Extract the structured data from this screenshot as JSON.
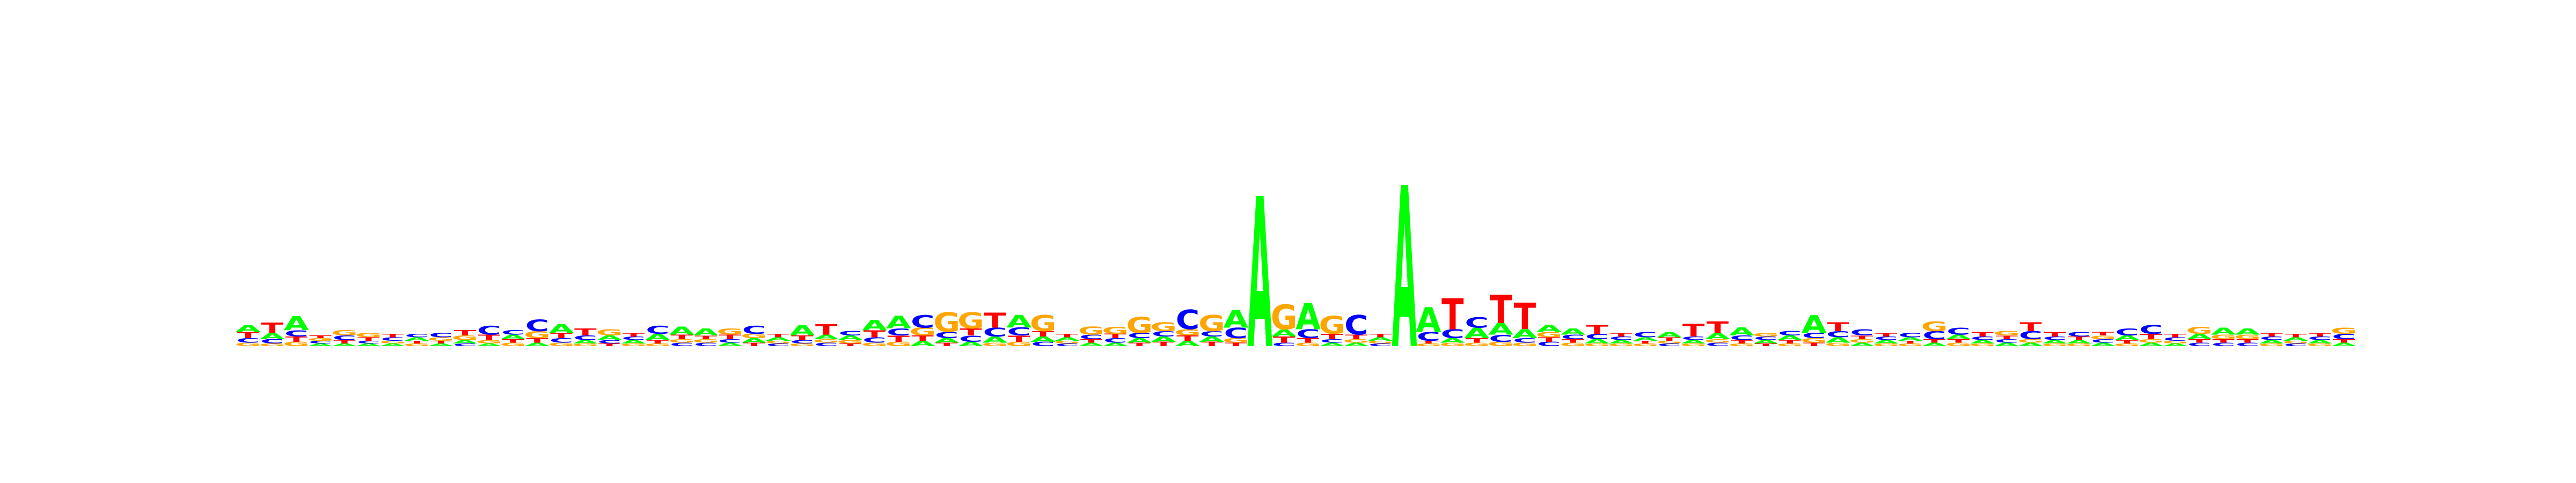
{
  "chart_data": {
    "type": "sequence-logo",
    "title": "",
    "xlabel": "",
    "ylabel": "",
    "axes_visible": false,
    "grid": false,
    "alphabet": [
      "A",
      "C",
      "G",
      "T"
    ],
    "colors": {
      "A": "#00ff00",
      "C": "#0000ff",
      "G": "#ffa500",
      "T": "#ff0000"
    },
    "ylim": [
      0,
      2
    ],
    "positions": [
      {
        "A": 0.08,
        "C": 0.05,
        "G": 0.04,
        "T": 0.07
      },
      {
        "A": 0.07,
        "C": 0.05,
        "G": 0.03,
        "T": 0.12
      },
      {
        "A": 0.16,
        "C": 0.07,
        "G": 0.05,
        "T": 0.06
      },
      {
        "A": 0.03,
        "C": 0.03,
        "G": 0.03,
        "T": 0.03
      },
      {
        "A": 0.03,
        "C": 0.05,
        "G": 0.06,
        "T": 0.04
      },
      {
        "A": 0.03,
        "C": 0.03,
        "G": 0.05,
        "T": 0.04
      },
      {
        "A": 0.03,
        "C": 0.04,
        "G": 0.03,
        "T": 0.04
      },
      {
        "A": 0.04,
        "C": 0.04,
        "G": 0.03,
        "T": 0.03
      },
      {
        "A": 0.03,
        "C": 0.05,
        "G": 0.04,
        "T": 0.03
      },
      {
        "A": 0.04,
        "C": 0.03,
        "G": 0.05,
        "T": 0.06
      },
      {
        "A": 0.03,
        "C": 0.1,
        "G": 0.04,
        "T": 0.06
      },
      {
        "A": 0.05,
        "C": 0.05,
        "G": 0.04,
        "T": 0.04
      },
      {
        "A": 0.04,
        "C": 0.13,
        "G": 0.08,
        "T": 0.05
      },
      {
        "A": 0.1,
        "C": 0.05,
        "G": 0.04,
        "T": 0.06
      },
      {
        "A": 0.04,
        "C": 0.05,
        "G": 0.03,
        "T": 0.08
      },
      {
        "A": 0.05,
        "C": 0.04,
        "G": 0.07,
        "T": 0.03
      },
      {
        "A": 0.04,
        "C": 0.04,
        "G": 0.03,
        "T": 0.04
      },
      {
        "A": 0.07,
        "C": 0.09,
        "G": 0.03,
        "T": 0.04
      },
      {
        "A": 0.09,
        "C": 0.04,
        "G": 0.04,
        "T": 0.05
      },
      {
        "A": 0.08,
        "C": 0.04,
        "G": 0.04,
        "T": 0.04
      },
      {
        "A": 0.04,
        "C": 0.04,
        "G": 0.07,
        "T": 0.05
      },
      {
        "A": 0.05,
        "C": 0.09,
        "G": 0.05,
        "T": 0.04
      },
      {
        "A": 0.04,
        "C": 0.03,
        "G": 0.03,
        "T": 0.04
      },
      {
        "A": 0.12,
        "C": 0.04,
        "G": 0.03,
        "T": 0.05
      },
      {
        "A": 0.05,
        "C": 0.04,
        "G": 0.04,
        "T": 0.12
      },
      {
        "A": 0.05,
        "C": 0.05,
        "G": 0.04,
        "T": 0.03
      },
      {
        "A": 0.12,
        "C": 0.06,
        "G": 0.04,
        "T": 0.08
      },
      {
        "A": 0.14,
        "C": 0.08,
        "G": 0.05,
        "T": 0.07
      },
      {
        "A": 0.06,
        "C": 0.14,
        "G": 0.09,
        "T": 0.06
      },
      {
        "A": 0.05,
        "C": 0.07,
        "G": 0.22,
        "T": 0.04
      },
      {
        "A": 0.05,
        "C": 0.07,
        "G": 0.18,
        "T": 0.08
      },
      {
        "A": 0.07,
        "C": 0.1,
        "G": 0.04,
        "T": 0.17
      },
      {
        "A": 0.14,
        "C": 0.09,
        "G": 0.05,
        "T": 0.07
      },
      {
        "A": 0.06,
        "C": 0.05,
        "G": 0.18,
        "T": 0.06
      },
      {
        "A": 0.04,
        "C": 0.03,
        "G": 0.03,
        "T": 0.04
      },
      {
        "A": 0.04,
        "C": 0.05,
        "G": 0.09,
        "T": 0.04
      },
      {
        "A": 0.04,
        "C": 0.05,
        "G": 0.08,
        "T": 0.05
      },
      {
        "A": 0.05,
        "C": 0.06,
        "G": 0.18,
        "T": 0.04
      },
      {
        "A": 0.06,
        "C": 0.06,
        "G": 0.1,
        "T": 0.05
      },
      {
        "A": 0.06,
        "C": 0.22,
        "G": 0.07,
        "T": 0.06
      },
      {
        "A": 0.06,
        "C": 0.06,
        "G": 0.18,
        "T": 0.05
      },
      {
        "A": 0.2,
        "C": 0.12,
        "G": 0.05,
        "T": 0.04
      },
      {
        "A": 1.7,
        "C": 0.0,
        "G": 0.0,
        "T": 0.0
      },
      {
        "A": 0.08,
        "C": 0.04,
        "G": 0.28,
        "T": 0.07
      },
      {
        "A": 0.3,
        "C": 0.1,
        "G": 0.04,
        "T": 0.05
      },
      {
        "A": 0.04,
        "C": 0.04,
        "G": 0.2,
        "T": 0.06
      },
      {
        "A": 0.04,
        "C": 0.22,
        "G": 0.04,
        "T": 0.05
      },
      {
        "A": 0.04,
        "C": 0.03,
        "G": 0.03,
        "T": 0.04
      },
      {
        "A": 1.82,
        "C": 0.0,
        "G": 0.0,
        "T": 0.0
      },
      {
        "A": 0.28,
        "C": 0.1,
        "G": 0.03,
        "T": 0.03
      },
      {
        "A": 0.05,
        "C": 0.1,
        "G": 0.04,
        "T": 0.35
      },
      {
        "A": 0.12,
        "C": 0.12,
        "G": 0.04,
        "T": 0.05
      },
      {
        "A": 0.13,
        "C": 0.08,
        "G": 0.05,
        "T": 0.32
      },
      {
        "A": 0.1,
        "C": 0.05,
        "G": 0.04,
        "T": 0.3
      },
      {
        "A": 0.08,
        "C": 0.05,
        "G": 0.06,
        "T": 0.05
      },
      {
        "A": 0.07,
        "C": 0.05,
        "G": 0.04,
        "T": 0.04
      },
      {
        "A": 0.05,
        "C": 0.06,
        "G": 0.03,
        "T": 0.1
      },
      {
        "A": 0.04,
        "C": 0.04,
        "G": 0.03,
        "T": 0.04
      },
      {
        "A": 0.04,
        "C": 0.06,
        "G": 0.03,
        "T": 0.03
      },
      {
        "A": 0.06,
        "C": 0.03,
        "G": 0.03,
        "T": 0.04
      },
      {
        "A": 0.04,
        "C": 0.04,
        "G": 0.03,
        "T": 0.14
      },
      {
        "A": 0.07,
        "C": 0.04,
        "G": 0.04,
        "T": 0.13
      },
      {
        "A": 0.09,
        "C": 0.05,
        "G": 0.03,
        "T": 0.04
      },
      {
        "A": 0.04,
        "C": 0.04,
        "G": 0.04,
        "T": 0.03
      },
      {
        "A": 0.05,
        "C": 0.05,
        "G": 0.03,
        "T": 0.04
      },
      {
        "A": 0.2,
        "C": 0.06,
        "G": 0.05,
        "T": 0.04
      },
      {
        "A": 0.06,
        "C": 0.07,
        "G": 0.04,
        "T": 0.1
      },
      {
        "A": 0.04,
        "C": 0.07,
        "G": 0.04,
        "T": 0.04
      },
      {
        "A": 0.04,
        "C": 0.04,
        "G": 0.03,
        "T": 0.04
      },
      {
        "A": 0.04,
        "C": 0.05,
        "G": 0.03,
        "T": 0.03
      },
      {
        "A": 0.04,
        "C": 0.09,
        "G": 0.11,
        "T": 0.04
      },
      {
        "A": 0.05,
        "C": 0.08,
        "G": 0.04,
        "T": 0.04
      },
      {
        "A": 0.04,
        "C": 0.04,
        "G": 0.03,
        "T": 0.05
      },
      {
        "A": 0.04,
        "C": 0.04,
        "G": 0.05,
        "T": 0.04
      },
      {
        "A": 0.04,
        "C": 0.09,
        "G": 0.04,
        "T": 0.1
      },
      {
        "A": 0.04,
        "C": 0.04,
        "G": 0.03,
        "T": 0.05
      },
      {
        "A": 0.04,
        "C": 0.05,
        "G": 0.03,
        "T": 0.04
      },
      {
        "A": 0.04,
        "C": 0.04,
        "G": 0.04,
        "T": 0.04
      },
      {
        "A": 0.05,
        "C": 0.08,
        "G": 0.03,
        "T": 0.04
      },
      {
        "A": 0.04,
        "C": 0.1,
        "G": 0.04,
        "T": 0.06
      },
      {
        "A": 0.03,
        "C": 0.04,
        "G": 0.03,
        "T": 0.04
      },
      {
        "A": 0.06,
        "C": 0.04,
        "G": 0.08,
        "T": 0.04
      },
      {
        "A": 0.08,
        "C": 0.04,
        "G": 0.05,
        "T": 0.04
      },
      {
        "A": 0.07,
        "C": 0.04,
        "G": 0.05,
        "T": 0.04
      },
      {
        "A": 0.04,
        "C": 0.04,
        "G": 0.03,
        "T": 0.04
      },
      {
        "A": 0.04,
        "C": 0.03,
        "G": 0.03,
        "T": 0.04
      },
      {
        "A": 0.04,
        "C": 0.04,
        "G": 0.03,
        "T": 0.04
      },
      {
        "A": 0.04,
        "C": 0.06,
        "G": 0.07,
        "T": 0.04
      }
    ]
  }
}
